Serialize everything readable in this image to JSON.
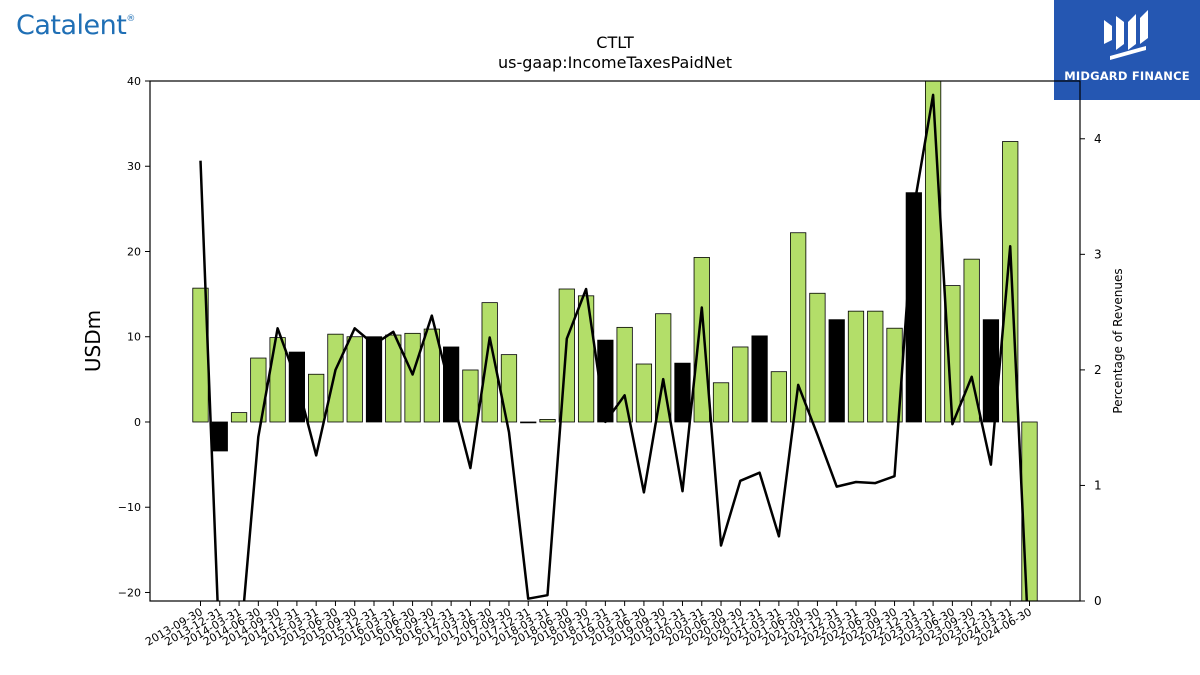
{
  "brands": {
    "left_logo": "Catalent",
    "left_logo_mark": "®",
    "right_logo": "MIDGARD FINANCE",
    "right_logo_icon": "midgard-m-icon"
  },
  "colors": {
    "bar_positive": "#b3de69",
    "bar_highlight": "#000000",
    "line": "#000000",
    "brand_left": "#1f6fb5",
    "brand_right": "#2557b2"
  },
  "chart_data": {
    "type": "bar",
    "title": "CTLT",
    "subtitle": "us-gaap:IncomeTaxesPaidNet",
    "ylabel": "USDm",
    "y2label": "Percentage of Revenues",
    "ylim": [
      -21,
      40
    ],
    "y2lim": [
      0,
      4.5
    ],
    "yticks": [
      -20,
      -10,
      0,
      10,
      20,
      30,
      40
    ],
    "y2ticks": [
      0,
      1,
      2,
      3,
      4
    ],
    "grid": false,
    "categories": [
      "2013-09-30",
      "2013-12-31",
      "2014-03-31",
      "2014-06-30",
      "2014-09-30",
      "2014-12-31",
      "2015-03-31",
      "2015-06-30",
      "2015-09-30",
      "2015-12-31",
      "2016-03-31",
      "2016-06-30",
      "2016-09-30",
      "2016-12-31",
      "2017-03-31",
      "2017-06-30",
      "2017-09-30",
      "2017-12-31",
      "2018-03-31",
      "2018-06-30",
      "2018-09-30",
      "2018-12-31",
      "2019-03-31",
      "2019-06-30",
      "2019-09-30",
      "2019-12-31",
      "2020-03-31",
      "2020-06-30",
      "2020-09-30",
      "2020-12-31",
      "2021-03-31",
      "2021-06-30",
      "2021-09-30",
      "2021-12-31",
      "2022-03-31",
      "2022-06-30",
      "2022-09-30",
      "2022-12-31",
      "2023-03-31",
      "2023-06-30",
      "2023-09-30",
      "2023-12-31",
      "2024-03-31",
      "2024-06-30"
    ],
    "series": [
      {
        "type": "bar",
        "axis": "left",
        "values": [
          15.7,
          -3.4,
          1.1,
          7.5,
          9.9,
          8.2,
          5.6,
          10.3,
          10.0,
          10.0,
          10.2,
          10.4,
          10.9,
          8.8,
          6.1,
          14.0,
          7.9,
          -0.1,
          0.3,
          15.6,
          14.8,
          9.6,
          11.1,
          6.8,
          12.7,
          6.9,
          19.3,
          4.6,
          8.8,
          10.1,
          5.9,
          22.2,
          15.1,
          12.0,
          13.0,
          13.0,
          11.0,
          26.9,
          40.2,
          16.0,
          19.1,
          12.0,
          32.9,
          -21.0
        ],
        "highlight": [
          false,
          true,
          false,
          false,
          false,
          true,
          false,
          false,
          false,
          true,
          false,
          false,
          false,
          true,
          false,
          false,
          false,
          true,
          false,
          false,
          false,
          true,
          false,
          false,
          false,
          true,
          false,
          false,
          false,
          true,
          false,
          false,
          false,
          true,
          false,
          false,
          false,
          true,
          false,
          false,
          false,
          true,
          false,
          false
        ]
      },
      {
        "type": "line",
        "axis": "right",
        "values": [
          3.81,
          -0.5,
          -0.5,
          1.42,
          2.36,
          1.9,
          1.26,
          2.0,
          2.36,
          2.22,
          2.33,
          1.96,
          2.47,
          1.8,
          1.15,
          2.28,
          1.46,
          0.02,
          0.05,
          2.27,
          2.7,
          1.55,
          1.78,
          0.94,
          1.92,
          0.95,
          2.54,
          0.48,
          1.04,
          1.11,
          0.56,
          1.87,
          1.44,
          0.99,
          1.03,
          1.02,
          1.08,
          3.4,
          4.38,
          1.53,
          1.94,
          1.18,
          3.07,
          -0.5
        ]
      }
    ]
  }
}
